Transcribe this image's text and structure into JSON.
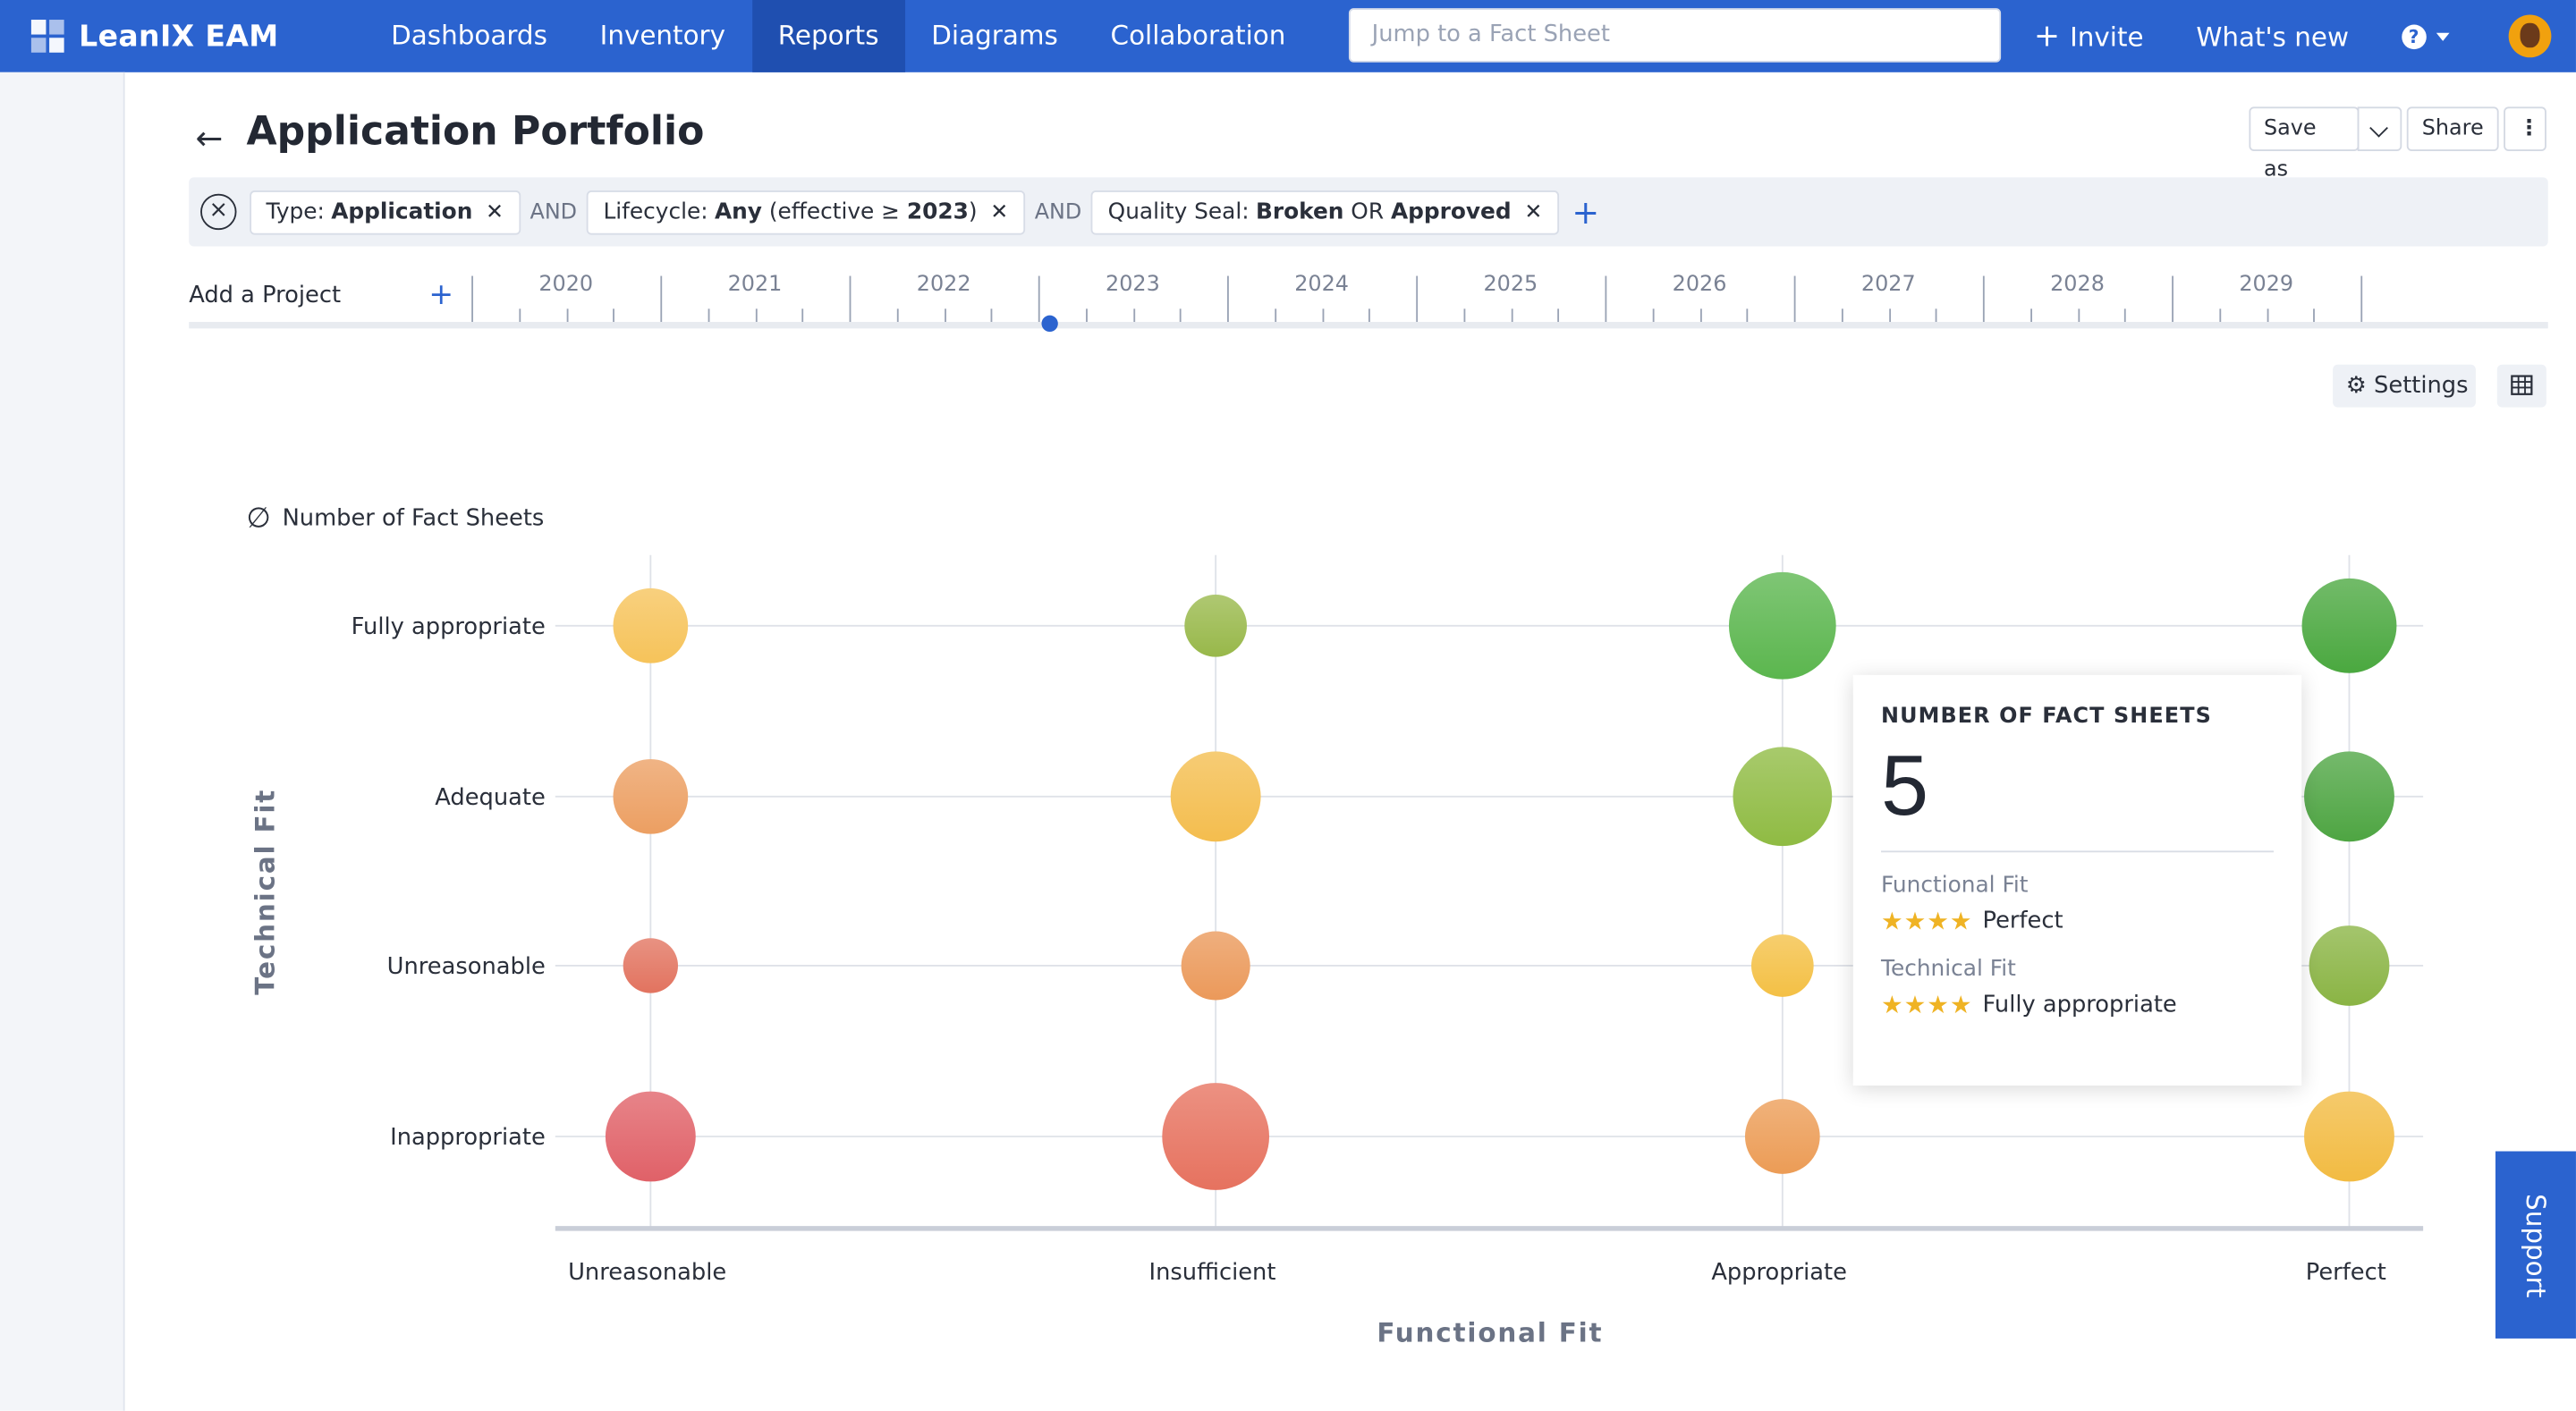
{
  "app": {
    "logo_text": "LeanIX EAM"
  },
  "nav": {
    "items": [
      "Dashboards",
      "Inventory",
      "Reports",
      "Diagrams",
      "Collaboration"
    ],
    "active": "Reports",
    "search_placeholder": "Jump to a Fact Sheet",
    "invite_label": "Invite",
    "whats_new_label": "What's new"
  },
  "header": {
    "title": "Application Portfolio",
    "save_as_label": "Save as",
    "share_label": "Share"
  },
  "filters": {
    "chips": [
      {
        "key": "Type:",
        "value": "Application"
      },
      {
        "key": "Lifecycle:",
        "value": "Any",
        "suffix": " (effective ≥ ",
        "suffix_bold": "2023",
        "suffix_end": ")"
      },
      {
        "key": "Quality Seal:",
        "value": "Broken",
        "suffix": " OR ",
        "suffix_bold": "Approved",
        "suffix_end": ""
      }
    ],
    "joiner": "AND"
  },
  "timeline": {
    "add_project_label": "Add a Project",
    "years": [
      "2020",
      "2021",
      "2022",
      "2023",
      "2024",
      "2025",
      "2026",
      "2027",
      "2028",
      "2029"
    ],
    "selected_year": "2023"
  },
  "tools": {
    "settings_label": "Settings"
  },
  "chart_data": {
    "type": "scatter",
    "subtype": "bubble",
    "size_measure": "Number of Fact Sheets",
    "x_axis": {
      "title": "Functional Fit",
      "categories": [
        "Unreasonable",
        "Insufficient",
        "Appropriate",
        "Perfect"
      ]
    },
    "y_axis": {
      "title": "Technical Fit",
      "categories": [
        "Inappropriate",
        "Unreasonable",
        "Adequate",
        "Fully appropriate"
      ]
    },
    "grid": true,
    "points": [
      {
        "x": "Unreasonable",
        "y": "Fully appropriate",
        "size": 3,
        "color": "#f6c35a"
      },
      {
        "x": "Unreasonable",
        "y": "Adequate",
        "size": 3,
        "color": "#ec9f62"
      },
      {
        "x": "Unreasonable",
        "y": "Unreasonable",
        "size": 1.5,
        "color": "#e2735f"
      },
      {
        "x": "Unreasonable",
        "y": "Inappropriate",
        "size": 4.5,
        "color": "#e06168"
      },
      {
        "x": "Insufficient",
        "y": "Fully appropriate",
        "size": 2,
        "color": "#98b84a"
      },
      {
        "x": "Insufficient",
        "y": "Adequate",
        "size": 4.5,
        "color": "#f4bd4e"
      },
      {
        "x": "Insufficient",
        "y": "Unreasonable",
        "size": 2.5,
        "color": "#eb995a"
      },
      {
        "x": "Insufficient",
        "y": "Inappropriate",
        "size": 6.5,
        "color": "#e6725f"
      },
      {
        "x": "Appropriate",
        "y": "Fully appropriate",
        "size": 6.5,
        "color": "#5bb64e"
      },
      {
        "x": "Appropriate",
        "y": "Adequate",
        "size": 5.5,
        "color": "#8fbb43"
      },
      {
        "x": "Appropriate",
        "y": "Unreasonable",
        "size": 2,
        "color": "#f4c045"
      },
      {
        "x": "Appropriate",
        "y": "Inappropriate",
        "size": 3,
        "color": "#ec9c56"
      },
      {
        "x": "Perfect",
        "y": "Fully appropriate",
        "size": 5,
        "color": "#4aa83f"
      },
      {
        "x": "Perfect",
        "y": "Adequate",
        "size": 4.5,
        "color": "#4ea542"
      },
      {
        "x": "Perfect",
        "y": "Unreasonable",
        "size": 3.5,
        "color": "#8ab444"
      },
      {
        "x": "Perfect",
        "y": "Inappropriate",
        "size": 4.5,
        "color": "#f2bb42"
      }
    ]
  },
  "legend": {
    "label": "Number of Fact Sheets"
  },
  "tooltip": {
    "heading": "NUMBER OF FACT SHEETS",
    "value": "5",
    "functional_label": "Functional Fit",
    "functional_value": "Perfect",
    "functional_stars": 4,
    "technical_label": "Technical Fit",
    "technical_value": "Fully appropriate",
    "technical_stars": 4
  },
  "support_label": "Support",
  "colors": {
    "brand": "#2b63cf",
    "nav_active": "#1f4fb0",
    "star": "#efb324"
  }
}
